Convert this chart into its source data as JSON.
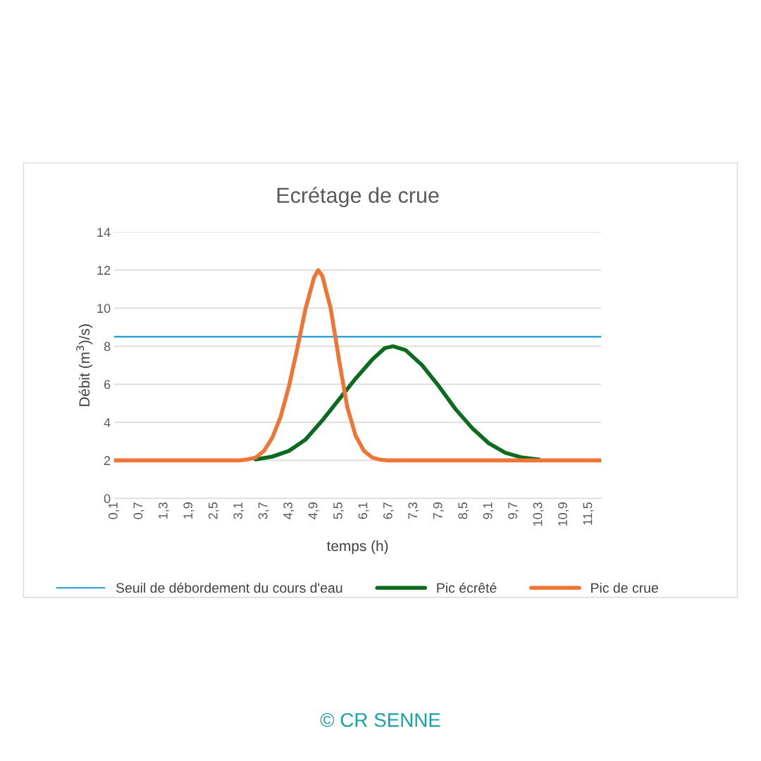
{
  "chart_data": {
    "type": "line",
    "title": "Ecrétage de crue",
    "xlabel": "temps (h)",
    "ylabel": "Débit (m$^{3}$)/s)",
    "xlim": [
      0.1,
      11.8
    ],
    "ylim": [
      0,
      14
    ],
    "yticks": [
      0,
      2,
      4,
      6,
      8,
      10,
      12,
      14
    ],
    "xticks": [
      {
        "value": 0.1,
        "label": "0,1"
      },
      {
        "value": 0.7,
        "label": "0,7"
      },
      {
        "value": 1.3,
        "label": "1,3"
      },
      {
        "value": 1.9,
        "label": "1,9"
      },
      {
        "value": 2.5,
        "label": "2,5"
      },
      {
        "value": 3.1,
        "label": "3,1"
      },
      {
        "value": 3.7,
        "label": "3,7"
      },
      {
        "value": 4.3,
        "label": "4,3"
      },
      {
        "value": 4.9,
        "label": "4,9"
      },
      {
        "value": 5.5,
        "label": "5,5"
      },
      {
        "value": 6.1,
        "label": "6,1"
      },
      {
        "value": 6.7,
        "label": "6,7"
      },
      {
        "value": 7.3,
        "label": "7,3"
      },
      {
        "value": 7.9,
        "label": "7,9"
      },
      {
        "value": 8.5,
        "label": "8,5"
      },
      {
        "value": 9.1,
        "label": "9,1"
      },
      {
        "value": 9.7,
        "label": "9,7"
      },
      {
        "value": 10.3,
        "label": "10,3"
      },
      {
        "value": 10.9,
        "label": "10,9"
      },
      {
        "value": 11.5,
        "label": "11,5"
      }
    ],
    "grid": "y",
    "legend": "bottom",
    "marker": "none",
    "line_style": "solid",
    "series": [
      {
        "name": "Seuil de débordement du cours d'eau",
        "color": "#1f9bd7",
        "x": [
          0.1,
          11.8
        ],
        "values": [
          8.5,
          8.5
        ]
      },
      {
        "name": "Pic écrêté",
        "color": "#0b6b1f",
        "x": [
          3.5,
          3.9,
          4.3,
          4.7,
          5.1,
          5.5,
          5.9,
          6.3,
          6.6,
          6.8,
          7.1,
          7.5,
          7.9,
          8.3,
          8.7,
          9.1,
          9.5,
          9.9,
          10.3
        ],
        "values": [
          2.05,
          2.2,
          2.5,
          3.1,
          4.1,
          5.2,
          6.3,
          7.3,
          7.9,
          8,
          7.8,
          7,
          5.9,
          4.7,
          3.7,
          2.9,
          2.4,
          2.15,
          2.05
        ]
      },
      {
        "name": "Pic de crue",
        "color": "#f07535",
        "x": [
          0.1,
          3.1,
          3.3,
          3.5,
          3.7,
          3.9,
          4.1,
          4.3,
          4.5,
          4.7,
          4.9,
          5.0,
          5.1,
          5.3,
          5.5,
          5.7,
          5.9,
          6.1,
          6.3,
          6.5,
          6.7,
          11.8
        ],
        "values": [
          2,
          2,
          2.05,
          2.15,
          2.5,
          3.2,
          4.3,
          5.9,
          7.9,
          10,
          11.6,
          12,
          11.7,
          10,
          7.3,
          4.8,
          3.3,
          2.5,
          2.15,
          2.03,
          2,
          2
        ]
      }
    ],
    "annotations": [
      "© CR SENNE"
    ]
  }
}
